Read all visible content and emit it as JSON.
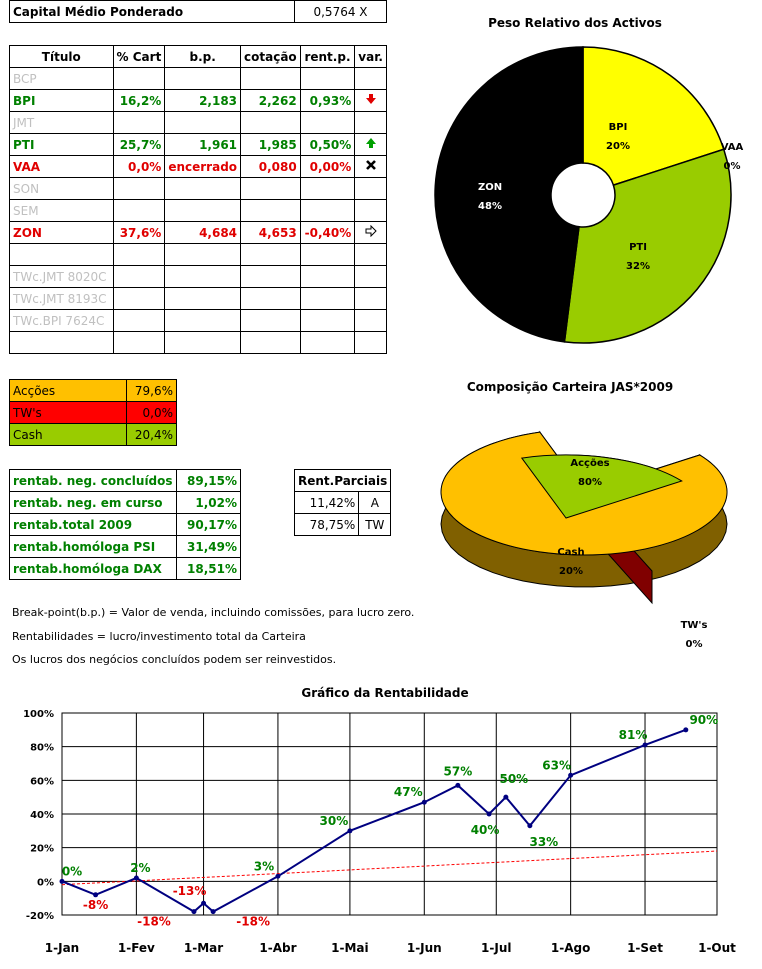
{
  "capital": {
    "label": "Capital Médio Ponderado",
    "value": "0,5764 X"
  },
  "main_table": {
    "headers": [
      "Título",
      "% Cart",
      "b.p.",
      "cotação",
      "rent.p.",
      "var."
    ],
    "rows": [
      {
        "titulo": "BCP",
        "cart": "",
        "bp": "",
        "cot": "",
        "rent": "",
        "var": "",
        "color": "grey"
      },
      {
        "titulo": "BPI",
        "cart": "16,2%",
        "bp": "2,183",
        "cot": "2,262",
        "rent": "0,93%",
        "var": "down-red-arrow-icon",
        "color": "green"
      },
      {
        "titulo": "JMT",
        "cart": "",
        "bp": "",
        "cot": "",
        "rent": "",
        "var": "",
        "color": "grey"
      },
      {
        "titulo": "PTI",
        "cart": "25,7%",
        "bp": "1,961",
        "cot": "1,985",
        "rent": "0,50%",
        "var": "up-green-arrow-icon",
        "color": "green"
      },
      {
        "titulo": "VAA",
        "cart": "0,0%",
        "bp": "encerrado",
        "cot": "0,080",
        "rent": "0,00%",
        "var": "x-icon",
        "color": "red"
      },
      {
        "titulo": "SON",
        "cart": "",
        "bp": "",
        "cot": "",
        "rent": "",
        "var": "",
        "color": "grey"
      },
      {
        "titulo": "SEM",
        "cart": "",
        "bp": "",
        "cot": "",
        "rent": "",
        "var": "",
        "color": "grey"
      },
      {
        "titulo": "ZON",
        "cart": "37,6%",
        "bp": "4,684",
        "cot": "4,653",
        "rent": "-0,40%",
        "var": "right-arrow-icon",
        "color": "red"
      },
      {
        "titulo": "",
        "cart": "",
        "bp": "",
        "cot": "",
        "rent": "",
        "var": "",
        "color": "grey"
      },
      {
        "titulo": "TWc.JMT 8020C",
        "cart": "",
        "bp": "",
        "cot": "",
        "rent": "",
        "var": "",
        "color": "grey"
      },
      {
        "titulo": "TWc.JMT 8193C",
        "cart": "",
        "bp": "",
        "cot": "",
        "rent": "",
        "var": "",
        "color": "grey"
      },
      {
        "titulo": "TWc.BPI 7624C",
        "cart": "",
        "bp": "",
        "cot": "",
        "rent": "",
        "var": "",
        "color": "grey"
      },
      {
        "titulo": "",
        "cart": "",
        "bp": "",
        "cot": "",
        "rent": "",
        "var": "",
        "color": "grey"
      }
    ]
  },
  "allocation_table": [
    {
      "label": "Acções",
      "value": "79,6%",
      "bg": "#ffc000"
    },
    {
      "label": "TW's",
      "value": "0,0%",
      "bg": "#ff0000"
    },
    {
      "label": "Cash",
      "value": "20,4%",
      "bg": "#99cc00"
    }
  ],
  "rent_table": [
    {
      "label": "rentab. neg. concluídos",
      "value": "89,15%"
    },
    {
      "label": "rentab. neg. em curso",
      "value": "1,02%"
    },
    {
      "label": "rentab.total 2009",
      "value": "90,17%"
    },
    {
      "label": "rentab.homóloga PSI",
      "value": "31,49%"
    },
    {
      "label": "rentab.homóloga DAX",
      "value": "18,51%"
    }
  ],
  "rent_parciais": {
    "header": "Rent.Parciais",
    "rows": [
      {
        "value": "11,42%",
        "code": "A"
      },
      {
        "value": "78,75%",
        "code": "TW"
      }
    ]
  },
  "notes": [
    "Break-point(b.p.) = Valor de venda, incluindo comissões, para lucro zero.",
    "Rentabilidades = lucro/investimento total da Carteira",
    "Os lucros dos negócios concluídos podem ser reinvestidos."
  ],
  "chart_data": [
    {
      "type": "pie",
      "title": "Peso Relativo dos Activos",
      "labels": [
        "BPI",
        "VAA",
        "PTI",
        "ZON"
      ],
      "values": [
        20,
        0,
        32,
        48
      ],
      "value_labels": [
        "20%",
        "0%",
        "32%",
        "48%"
      ],
      "colors": [
        "#ffff00",
        "#ff0000",
        "#99cc00",
        "#000000"
      ]
    },
    {
      "type": "pie",
      "title": "Composição Carteira JAS*2009",
      "labels": [
        "Acções",
        "TW's",
        "Cash"
      ],
      "values": [
        80,
        0,
        20
      ],
      "value_labels": [
        "80%",
        "0%",
        "20%"
      ],
      "colors": [
        "#ffc000",
        "#ff0000",
        "#99cc00"
      ]
    },
    {
      "type": "line",
      "title": "Gráfico da Rentabilidade",
      "x_tick_labels": [
        "1-Jan",
        "1-Fev",
        "1-Mar",
        "1-Abr",
        "1-Mai",
        "1-Jun",
        "1-Jul",
        "1-Ago",
        "1-Set",
        "1-Out"
      ],
      "y_tick_labels": [
        "-20%",
        "0%",
        "20%",
        "40%",
        "60%",
        "80%",
        "100%"
      ],
      "ylim": [
        -20,
        100
      ],
      "series": [
        {
          "x": [
            "2009-01-01",
            "2009-01-15",
            "2009-02-01",
            "2009-02-25",
            "2009-03-01",
            "2009-03-05",
            "2009-04-01",
            "2009-05-01",
            "2009-06-01",
            "2009-06-15",
            "2009-06-28",
            "2009-07-05",
            "2009-07-15",
            "2009-08-01",
            "2009-09-01",
            "2009-09-18"
          ],
          "values": [
            0,
            -8,
            2,
            -18,
            -13,
            -18,
            3,
            30,
            47,
            57,
            40,
            50,
            33,
            63,
            81,
            90
          ],
          "color": "#000080"
        },
        {
          "x": [
            "2009-01-01",
            "2009-10-01"
          ],
          "values": [
            -2,
            18
          ],
          "color": "#ff0000"
        }
      ],
      "annotations": [
        {
          "text": "0%",
          "x": "2009-01-01",
          "y": 0,
          "color": "#008000"
        },
        {
          "text": "-8%",
          "x": "2009-01-15",
          "y": -8,
          "color": "#e00000"
        },
        {
          "text": "2%",
          "x": "2009-02-01",
          "y": 2,
          "color": "#008000"
        },
        {
          "text": "-18%",
          "x": "2009-02-15",
          "y": -18,
          "color": "#e00000"
        },
        {
          "text": "-13%",
          "x": "2009-03-01",
          "y": -13,
          "color": "#e00000"
        },
        {
          "text": "-18%",
          "x": "2009-03-10",
          "y": -18,
          "color": "#e00000"
        },
        {
          "text": "3%",
          "x": "2009-04-01",
          "y": 3,
          "color": "#008000"
        },
        {
          "text": "30%",
          "x": "2009-05-01",
          "y": 30,
          "color": "#008000"
        },
        {
          "text": "47%",
          "x": "2009-06-01",
          "y": 47,
          "color": "#008000"
        },
        {
          "text": "57%",
          "x": "2009-06-15",
          "y": 57,
          "color": "#008000"
        },
        {
          "text": "40%",
          "x": "2009-06-28",
          "y": 40,
          "color": "#008000"
        },
        {
          "text": "50%",
          "x": "2009-07-05",
          "y": 50,
          "color": "#008000"
        },
        {
          "text": "33%",
          "x": "2009-07-15",
          "y": 33,
          "color": "#008000"
        },
        {
          "text": "63%",
          "x": "2009-08-01",
          "y": 63,
          "color": "#008000"
        },
        {
          "text": "81%",
          "x": "2009-09-01",
          "y": 81,
          "color": "#008000"
        },
        {
          "text": "90%",
          "x": "2009-09-18",
          "y": 90,
          "color": "#008000"
        }
      ]
    }
  ]
}
